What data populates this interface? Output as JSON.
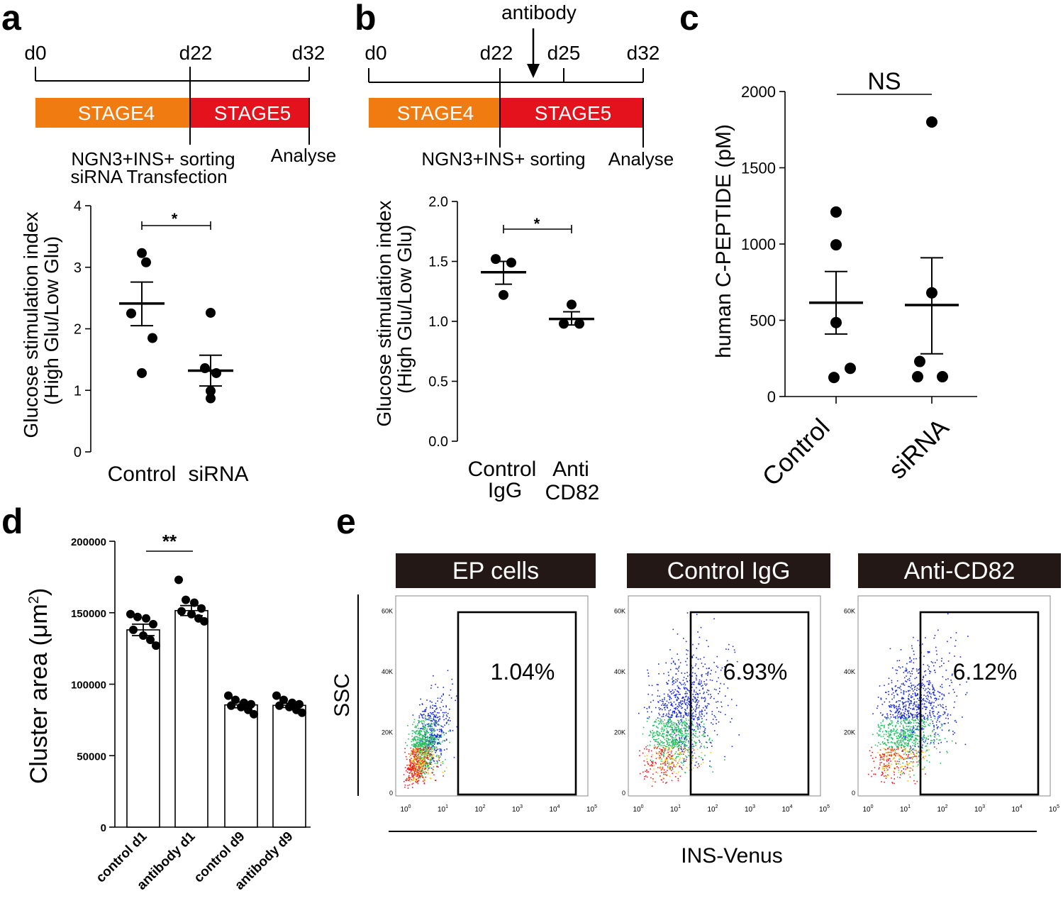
{
  "panel_labels": [
    "a",
    "b",
    "c",
    "d",
    "e"
  ],
  "colors": {
    "stage4": "#f07b10",
    "stage5": "#e3121c",
    "ink": "#000000",
    "header_bg": "#231815",
    "dot_cold": "#1a2cd6",
    "dot_hot": "#e8202a"
  },
  "timeline_a": {
    "days": [
      "d0",
      "d22",
      "d32"
    ],
    "stage4_label": "STAGE4",
    "stage5_label": "STAGE5",
    "note_line1": "NGN3+INS+ sorting",
    "note_line2": "siRNA Transfection",
    "analyse_label": "Analyse"
  },
  "timeline_b": {
    "days": [
      "d0",
      "d22",
      "d25",
      "d32"
    ],
    "antibody_label": "antibody",
    "stage4_label": "STAGE4",
    "stage5_label": "STAGE5",
    "note_line1": "NGN3+INS+ sorting",
    "analyse_label": "Analyse"
  },
  "chart_data": [
    {
      "id": "a",
      "type": "scatter",
      "ylabel_line1": "Glucose stimulation index",
      "ylabel_line2": "(High Glu/Low Glu)",
      "ylim": [
        0,
        4
      ],
      "yticks": [
        "0",
        "1",
        "2",
        "3",
        "4"
      ],
      "categories": [
        "Control",
        "siRNA"
      ],
      "groups": [
        {
          "name": "Control",
          "points": [
            3.23,
            3.08,
            2.25,
            1.85,
            1.28
          ],
          "mean": 2.41,
          "sem_low": 2.05,
          "sem_high": 2.76
        },
        {
          "name": "siRNA",
          "points": [
            2.26,
            1.36,
            1.28,
            0.99,
            0.87
          ],
          "mean": 1.32,
          "sem_low": 1.07,
          "sem_high": 1.57
        }
      ],
      "significance": "*"
    },
    {
      "id": "b",
      "type": "scatter",
      "ylabel_line1": "Glucose stimulation index",
      "ylabel_line2": "(High Glu/Low Glu)",
      "ylim": [
        0,
        2.0
      ],
      "yticks": [
        "0.0",
        "0.5",
        "1.0",
        "1.5",
        "2.0"
      ],
      "category_lines": [
        [
          "Control",
          "IgG"
        ],
        [
          "Anti",
          "CD82"
        ]
      ],
      "groups": [
        {
          "name": "Control IgG",
          "points": [
            1.52,
            1.49,
            1.22
          ],
          "mean": 1.41,
          "sem_low": 1.31,
          "sem_high": 1.5
        },
        {
          "name": "Anti CD82",
          "points": [
            1.14,
            0.98,
            0.98
          ],
          "mean": 1.02,
          "sem_low": 0.97,
          "sem_high": 1.08
        }
      ],
      "significance": "*"
    },
    {
      "id": "c",
      "type": "scatter",
      "ylabel": "human C-PEPTIDE (pM)",
      "ylim": [
        0,
        2000
      ],
      "yticks": [
        "0",
        "500",
        "1000",
        "1500",
        "2000"
      ],
      "categories": [
        "Control",
        "siRNA"
      ],
      "groups": [
        {
          "name": "Control",
          "points": [
            1210,
            995,
            485,
            185,
            125
          ],
          "mean": 615,
          "sem_low": 410,
          "sem_high": 820
        },
        {
          "name": "siRNA",
          "points": [
            1800,
            680,
            230,
            130,
            130
          ],
          "mean": 600,
          "sem_low": 280,
          "sem_high": 910
        }
      ],
      "significance": "NS"
    },
    {
      "id": "d",
      "type": "bar",
      "ylabel": "Cluster area (μm",
      "ylabel_sup": "2",
      "ylabel_close": ")",
      "ylim": [
        0,
        200000
      ],
      "yticks": [
        "0",
        "50000",
        "100000",
        "150000",
        "200000"
      ],
      "categories": [
        "control d1",
        "antibody d1",
        "control d9",
        "antibody d9"
      ],
      "values": [
        138000,
        151500,
        85500,
        85200
      ],
      "sem": [
        4000,
        3500,
        2000,
        1500
      ],
      "points": [
        [
          149000,
          147000,
          146000,
          142000,
          138000,
          134000,
          131000,
          127000
        ],
        [
          173000,
          159000,
          157000,
          153000,
          151000,
          149000,
          146000,
          144000
        ],
        [
          92000,
          89000,
          87000,
          86000,
          85000,
          84000,
          82000,
          79000
        ],
        [
          92000,
          89000,
          87000,
          86000,
          85000,
          84000,
          82000,
          80000
        ]
      ],
      "significance": "**"
    }
  ],
  "flow_e": {
    "xlabel": "INS-Venus",
    "ylabel": "SSC",
    "y_ticks": [
      "0",
      "20K",
      "40K",
      "60K"
    ],
    "x_ticks": [
      "10",
      "10",
      "10",
      "10",
      "10",
      "10"
    ],
    "x_exponents": [
      "0",
      "1",
      "2",
      "3",
      "4",
      "5"
    ],
    "panels": [
      {
        "title": "EP cells",
        "gate_percent": "1.04%",
        "gate_fraction": 1.04
      },
      {
        "title": "Control IgG",
        "gate_percent": "6.93%",
        "gate_fraction": 6.93
      },
      {
        "title": "Anti-CD82",
        "gate_percent": "6.12%",
        "gate_fraction": 6.12
      }
    ]
  }
}
